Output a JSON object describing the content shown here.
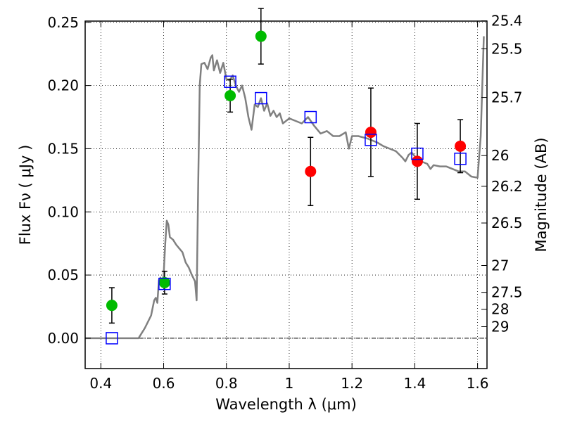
{
  "chart_data": {
    "type": "scatter",
    "xlabel": "Wavelength  λ (μm)",
    "ylabel": "Flux  Fν  ( μJy )",
    "ylabel_right": "Magnitude (AB)",
    "xlim": [
      0.35,
      1.63
    ],
    "ylim": [
      -0.024,
      0.251
    ],
    "grid": true,
    "x_ticks": [
      {
        "value": 0.4,
        "label": "0.4"
      },
      {
        "value": 0.6,
        "label": "0.6"
      },
      {
        "value": 0.8,
        "label": "0.8"
      },
      {
        "value": 1.0,
        "label": "1"
      },
      {
        "value": 1.2,
        "label": "1.2"
      },
      {
        "value": 1.4,
        "label": "1.4"
      },
      {
        "value": 1.6,
        "label": "1.6"
      }
    ],
    "y_ticks": [
      {
        "value": 0.0,
        "label": "0.00"
      },
      {
        "value": 0.05,
        "label": "0.05"
      },
      {
        "value": 0.1,
        "label": "0.10"
      },
      {
        "value": 0.15,
        "label": "0.15"
      },
      {
        "value": 0.2,
        "label": "0.20"
      },
      {
        "value": 0.25,
        "label": "0.25"
      }
    ],
    "right_ticks": [
      {
        "value": 25.4,
        "label": "25.4"
      },
      {
        "value": 25.5,
        "label": "25.5"
      },
      {
        "value": 25.7,
        "label": "25.7"
      },
      {
        "value": 26,
        "label": "26"
      },
      {
        "value": 26.2,
        "label": "26.2"
      },
      {
        "value": 26.5,
        "label": "26.5"
      },
      {
        "value": 27,
        "label": "27"
      },
      {
        "value": 27.5,
        "label": "27.5"
      },
      {
        "value": 28,
        "label": "28"
      },
      {
        "value": 29,
        "label": "29"
      }
    ],
    "model_spectrum": {
      "color": "#808080",
      "points": [
        [
          0.35,
          0.0
        ],
        [
          0.52,
          0.0
        ],
        [
          0.54,
          0.008
        ],
        [
          0.56,
          0.018
        ],
        [
          0.57,
          0.03
        ],
        [
          0.575,
          0.032
        ],
        [
          0.58,
          0.028
        ],
        [
          0.585,
          0.046
        ],
        [
          0.59,
          0.048
        ],
        [
          0.595,
          0.042
        ],
        [
          0.6,
          0.05
        ],
        [
          0.605,
          0.075
        ],
        [
          0.61,
          0.093
        ],
        [
          0.615,
          0.09
        ],
        [
          0.62,
          0.08
        ],
        [
          0.63,
          0.078
        ],
        [
          0.64,
          0.074
        ],
        [
          0.65,
          0.071
        ],
        [
          0.66,
          0.068
        ],
        [
          0.67,
          0.06
        ],
        [
          0.68,
          0.056
        ],
        [
          0.69,
          0.05
        ],
        [
          0.7,
          0.045
        ],
        [
          0.705,
          0.03
        ],
        [
          0.71,
          0.12
        ],
        [
          0.715,
          0.2
        ],
        [
          0.72,
          0.217
        ],
        [
          0.73,
          0.218
        ],
        [
          0.74,
          0.213
        ],
        [
          0.75,
          0.222
        ],
        [
          0.755,
          0.224
        ],
        [
          0.76,
          0.212
        ],
        [
          0.77,
          0.22
        ],
        [
          0.78,
          0.21
        ],
        [
          0.79,
          0.218
        ],
        [
          0.8,
          0.205
        ],
        [
          0.81,
          0.204
        ],
        [
          0.82,
          0.208
        ],
        [
          0.83,
          0.2
        ],
        [
          0.84,
          0.195
        ],
        [
          0.85,
          0.2
        ],
        [
          0.86,
          0.19
        ],
        [
          0.87,
          0.175
        ],
        [
          0.88,
          0.165
        ],
        [
          0.89,
          0.185
        ],
        [
          0.9,
          0.183
        ],
        [
          0.91,
          0.19
        ],
        [
          0.92,
          0.18
        ],
        [
          0.93,
          0.186
        ],
        [
          0.94,
          0.176
        ],
        [
          0.95,
          0.18
        ],
        [
          0.96,
          0.175
        ],
        [
          0.97,
          0.178
        ],
        [
          0.98,
          0.17
        ],
        [
          1.0,
          0.174
        ],
        [
          1.02,
          0.172
        ],
        [
          1.04,
          0.17
        ],
        [
          1.06,
          0.175
        ],
        [
          1.08,
          0.168
        ],
        [
          1.1,
          0.162
        ],
        [
          1.12,
          0.164
        ],
        [
          1.14,
          0.16
        ],
        [
          1.16,
          0.16
        ],
        [
          1.18,
          0.163
        ],
        [
          1.19,
          0.15
        ],
        [
          1.2,
          0.16
        ],
        [
          1.22,
          0.16
        ],
        [
          1.25,
          0.158
        ],
        [
          1.28,
          0.155
        ],
        [
          1.3,
          0.152
        ],
        [
          1.32,
          0.15
        ],
        [
          1.34,
          0.148
        ],
        [
          1.36,
          0.143
        ],
        [
          1.37,
          0.14
        ],
        [
          1.38,
          0.145
        ],
        [
          1.39,
          0.147
        ],
        [
          1.4,
          0.144
        ],
        [
          1.42,
          0.14
        ],
        [
          1.44,
          0.138
        ],
        [
          1.45,
          0.134
        ],
        [
          1.46,
          0.137
        ],
        [
          1.48,
          0.136
        ],
        [
          1.5,
          0.136
        ],
        [
          1.52,
          0.134
        ],
        [
          1.54,
          0.132
        ],
        [
          1.56,
          0.132
        ],
        [
          1.58,
          0.128
        ],
        [
          1.6,
          0.127
        ],
        [
          1.61,
          0.16
        ],
        [
          1.62,
          0.239
        ]
      ]
    },
    "green_points": {
      "color": "#00bb00",
      "points": [
        {
          "x": 0.435,
          "y": 0.026,
          "err": 0.014
        },
        {
          "x": 0.603,
          "y": 0.044,
          "err": 0.009
        },
        {
          "x": 0.812,
          "y": 0.192,
          "err": 0.013
        },
        {
          "x": 0.91,
          "y": 0.239,
          "err": 0.022
        }
      ]
    },
    "red_points": {
      "color": "#ff0000",
      "points": [
        {
          "x": 1.068,
          "y": 0.132,
          "err": 0.027
        },
        {
          "x": 1.26,
          "y": 0.163,
          "err": 0.035
        },
        {
          "x": 1.408,
          "y": 0.14,
          "err": 0.03
        },
        {
          "x": 1.545,
          "y": 0.152,
          "err": 0.021
        }
      ]
    },
    "model_photometry": {
      "color": "#0000ff",
      "points": [
        {
          "x": 0.435,
          "y": 0.0
        },
        {
          "x": 0.603,
          "y": 0.043
        },
        {
          "x": 0.812,
          "y": 0.203
        },
        {
          "x": 0.91,
          "y": 0.19
        },
        {
          "x": 1.068,
          "y": 0.175
        },
        {
          "x": 1.26,
          "y": 0.157
        },
        {
          "x": 1.408,
          "y": 0.146
        },
        {
          "x": 1.545,
          "y": 0.142
        }
      ]
    }
  }
}
